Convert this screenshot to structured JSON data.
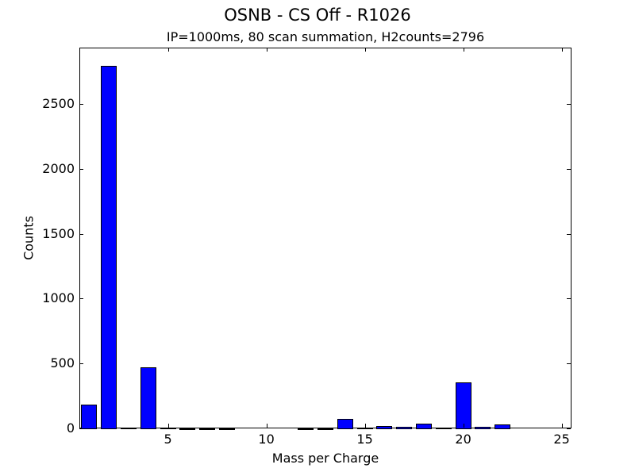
{
  "chart_data": {
    "type": "bar",
    "title": "OSNB - CS Off - R1026",
    "subtitle": "IP=1000ms, 80 scan summation, H2counts=2796",
    "xlabel": "Mass per Charge",
    "ylabel": "Counts",
    "x": [
      1,
      2,
      3,
      4,
      5,
      6,
      7,
      8,
      9,
      10,
      11,
      12,
      13,
      14,
      15,
      16,
      17,
      18,
      19,
      20,
      21,
      22,
      23,
      24,
      25
    ],
    "values": [
      183,
      2796,
      4,
      471,
      4,
      3,
      3,
      3,
      0,
      0,
      0,
      3,
      3,
      73,
      5,
      18,
      12,
      37,
      5,
      355,
      12,
      30,
      0,
      0,
      0
    ],
    "xlim": [
      0.5,
      25.5
    ],
    "ylim": [
      0,
      2935
    ],
    "xticks": [
      5,
      10,
      15,
      20,
      25
    ],
    "yticks": [
      0,
      500,
      1000,
      1500,
      2000,
      2500
    ],
    "bar_width": 0.8,
    "bar_color": "#0000ff",
    "grid": false,
    "legend": null
  }
}
